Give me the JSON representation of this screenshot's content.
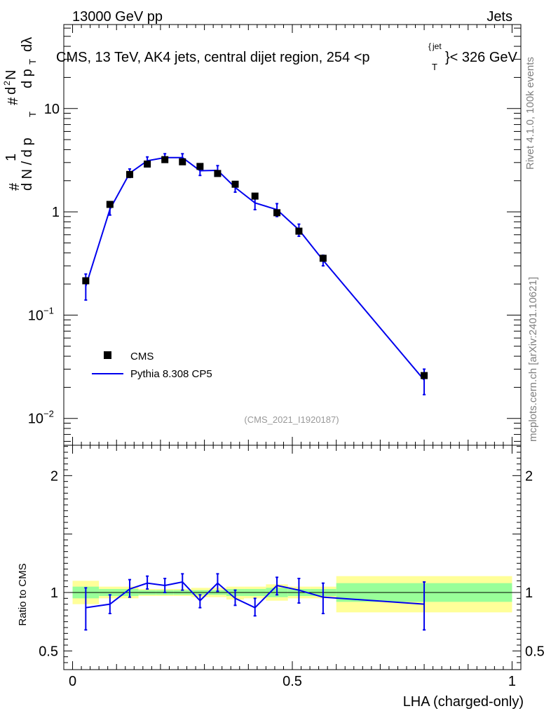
{
  "header": {
    "energy_label": "13000 GeV pp",
    "category_label": "Jets"
  },
  "side_labels": {
    "rivet": "Rivet 4.1.0,  100k events",
    "mcplots": "mcplots.cern.ch [arXiv:2401.10621]"
  },
  "watermark": "(CMS_2021_I1920187)",
  "colors": {
    "data": "#000000",
    "mc": "#0000ee",
    "band_inner": "#99ff99",
    "band_outer": "#ffff99"
  },
  "chart_data": [
    {
      "type": "scatter",
      "panel": "main",
      "title_parts": {
        "prefix": "CMS, 13 TeV, AK4 jets, central dijet region, 254 <p",
        "sup": "jet",
        "sub": "T",
        "suffix": "}< 326 GeV"
      },
      "title_brace_glyph": "{",
      "ylabel_parts": {
        "hash": "#",
        "one": "1",
        "dN": "d N / d p",
        "dN_sub": "T",
        "hash2": "#",
        "d2N": "d",
        "d2N_sup": "2",
        "d2N_N": "N",
        "dpt": "d p",
        "dpt_sub": "T",
        "dlambda": "dλ"
      },
      "yscale": "log",
      "ylim": [
        0.0055,
        65
      ],
      "xlim": [
        -0.02,
        1.02
      ],
      "y_tick_labels": [
        {
          "value": 10,
          "label": "10"
        },
        {
          "value": 1,
          "label": "1"
        },
        {
          "value": 0.1,
          "base": "10",
          "exp": "−1"
        },
        {
          "value": 0.01,
          "base": "10",
          "exp": "−2"
        }
      ],
      "legend": {
        "position": "bottom-left",
        "entries": [
          "CMS",
          "Pythia 8.308 CP5"
        ]
      },
      "series": [
        {
          "name": "CMS",
          "style": "markers",
          "x": [
            0.03,
            0.085,
            0.13,
            0.17,
            0.21,
            0.25,
            0.29,
            0.33,
            0.37,
            0.415,
            0.465,
            0.515,
            0.57,
            0.8
          ],
          "xerr": [
            0.03,
            0.025,
            0.02,
            0.02,
            0.02,
            0.02,
            0.02,
            0.02,
            0.02,
            0.025,
            0.025,
            0.025,
            0.03,
            0.2
          ],
          "y": [
            0.215,
            1.18,
            2.3,
            2.9,
            3.2,
            3.05,
            2.75,
            2.35,
            1.85,
            1.42,
            0.98,
            0.65,
            0.355,
            0.026
          ]
        },
        {
          "name": "Pythia 8.308 CP5",
          "style": "line",
          "x": [
            0.03,
            0.085,
            0.13,
            0.17,
            0.21,
            0.25,
            0.29,
            0.33,
            0.37,
            0.415,
            0.465,
            0.515,
            0.57,
            0.8
          ],
          "y": [
            0.19,
            1.06,
            2.37,
            3.12,
            3.35,
            3.35,
            2.5,
            2.52,
            1.72,
            1.22,
            1.05,
            0.67,
            0.34,
            0.0235
          ],
          "y_lo": [
            0.14,
            0.93,
            2.15,
            2.85,
            3.05,
            3.0,
            2.25,
            2.25,
            1.55,
            1.05,
            0.9,
            0.58,
            0.3,
            0.017
          ],
          "y_hi": [
            0.25,
            1.2,
            2.6,
            3.4,
            3.65,
            3.65,
            2.75,
            2.8,
            1.9,
            1.4,
            1.2,
            0.76,
            0.38,
            0.03
          ]
        }
      ]
    },
    {
      "type": "line",
      "panel": "ratio",
      "ylabel": "Ratio to CMS",
      "xlabel": "LHA (charged-only)",
      "xlim": [
        -0.02,
        1.02
      ],
      "ylim": [
        0.34,
        2.26
      ],
      "y_tick_labels": [
        {
          "value": 2,
          "label": "2"
        },
        {
          "value": 1,
          "label": "1"
        },
        {
          "value": 0.5,
          "label": "0.5"
        }
      ],
      "x_tick_labels": [
        {
          "value": 0,
          "label": "0"
        },
        {
          "value": 0.5,
          "label": "0.5"
        },
        {
          "value": 1,
          "label": "1"
        }
      ],
      "bands": {
        "edges": [
          0.0,
          0.06,
          0.11,
          0.15,
          0.19,
          0.23,
          0.27,
          0.31,
          0.35,
          0.39,
          0.44,
          0.49,
          0.54,
          0.6,
          1.0
        ],
        "inner_lo": [
          0.95,
          0.97,
          0.97,
          0.98,
          0.98,
          0.98,
          0.98,
          0.98,
          0.97,
          0.97,
          0.96,
          0.97,
          0.97,
          0.92
        ],
        "inner_hi": [
          1.05,
          1.03,
          1.03,
          1.02,
          1.02,
          1.02,
          1.02,
          1.02,
          1.03,
          1.03,
          1.04,
          1.03,
          1.03,
          1.08
        ],
        "outer_lo": [
          0.9,
          0.95,
          0.95,
          0.97,
          0.97,
          0.97,
          0.96,
          0.96,
          0.94,
          0.95,
          0.93,
          0.95,
          0.95,
          0.83
        ],
        "outer_hi": [
          1.1,
          1.05,
          1.05,
          1.03,
          1.03,
          1.03,
          1.04,
          1.04,
          1.05,
          1.05,
          1.07,
          1.05,
          1.05,
          1.14
        ]
      },
      "series": [
        {
          "name": "Pythia 8.308 CP5 / CMS",
          "x": [
            0.03,
            0.085,
            0.13,
            0.17,
            0.21,
            0.25,
            0.29,
            0.33,
            0.37,
            0.415,
            0.465,
            0.515,
            0.57,
            0.8
          ],
          "y": [
            0.87,
            0.9,
            1.03,
            1.08,
            1.06,
            1.09,
            0.93,
            1.08,
            0.95,
            0.87,
            1.06,
            1.02,
            0.96,
            0.9
          ],
          "y_lo": [
            0.68,
            0.82,
            0.96,
            1.03,
            1.0,
            1.02,
            0.87,
            1.01,
            0.89,
            0.8,
            0.98,
            0.91,
            0.82,
            0.68
          ],
          "y_hi": [
            1.04,
            0.98,
            1.11,
            1.14,
            1.12,
            1.16,
            0.98,
            1.16,
            1.02,
            0.95,
            1.13,
            1.12,
            1.08,
            1.09
          ]
        }
      ]
    }
  ]
}
